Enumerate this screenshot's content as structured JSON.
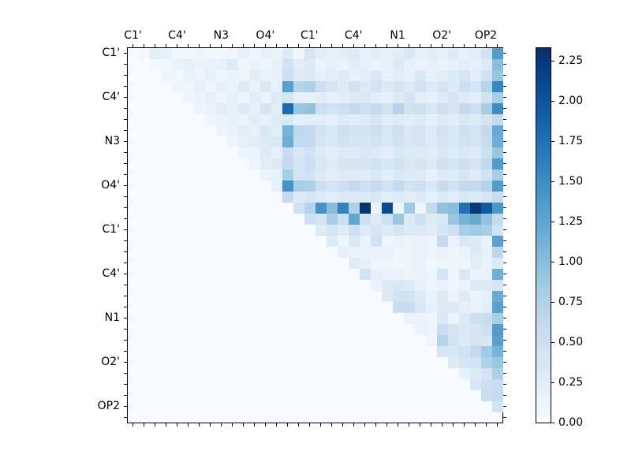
{
  "chart_data": {
    "type": "heatmap",
    "title": "",
    "xlabel": "",
    "ylabel": "",
    "n_cells": 34,
    "x_tick_labels": [
      "C1'",
      "C4'",
      "N3",
      "O4'",
      "C1'",
      "C4'",
      "N1",
      "O2'",
      "OP2"
    ],
    "y_tick_labels": [
      "C1'",
      "C4'",
      "N3",
      "O4'",
      "C1'",
      "C4'",
      "N1",
      "O2'",
      "OP2"
    ],
    "labeled_cell_indices": [
      0,
      4,
      8,
      12,
      16,
      20,
      24,
      28,
      32
    ],
    "colormap": "Blues",
    "vmin": 0.0,
    "vmax": 2.33,
    "colorbar": {
      "tick_labels": [
        "0.00",
        "0.25",
        "0.50",
        "0.75",
        "1.00",
        "1.25",
        "1.50",
        "1.75",
        "2.00",
        "2.25"
      ],
      "tick_values": [
        0.0,
        0.25,
        0.5,
        0.75,
        1.0,
        1.25,
        1.5,
        1.75,
        2.0,
        2.25
      ]
    },
    "matrix": [
      [
        0,
        0.05,
        0.25,
        0.2,
        0.08,
        0.05,
        0.1,
        0.08,
        0.05,
        0.1,
        0.2,
        0.1,
        0.2,
        0.15,
        0.3,
        0.1,
        0.4,
        0.25,
        0.2,
        0.25,
        0.3,
        0.2,
        0.25,
        0.2,
        0.25,
        0.35,
        0.2,
        0.25,
        0.2,
        0.3,
        0.2,
        0.25,
        0.45,
        1.35
      ],
      [
        0,
        0,
        0.05,
        0.08,
        0.15,
        0.2,
        0.15,
        0.15,
        0.2,
        0.3,
        0.1,
        0.15,
        0.1,
        0.2,
        0.45,
        0.25,
        0.3,
        0.15,
        0.2,
        0.15,
        0.25,
        0.2,
        0.15,
        0.2,
        0.3,
        0.2,
        0.15,
        0.2,
        0.15,
        0.2,
        0.25,
        0.2,
        0.3,
        1.0
      ],
      [
        0,
        0,
        0,
        0.1,
        0.08,
        0.15,
        0.1,
        0.2,
        0.1,
        0.15,
        0.1,
        0.25,
        0.15,
        0.2,
        0.5,
        0.3,
        0.3,
        0.2,
        0.25,
        0.3,
        0.2,
        0.25,
        0.35,
        0.2,
        0.25,
        0.2,
        0.35,
        0.2,
        0.25,
        0.3,
        0.4,
        0.25,
        0.45,
        0.9
      ],
      [
        0,
        0,
        0,
        0,
        0.1,
        0.1,
        0.2,
        0.1,
        0.2,
        0.15,
        0.3,
        0.15,
        0.35,
        0.2,
        1.3,
        0.7,
        0.75,
        0.5,
        0.4,
        0.3,
        0.45,
        0.3,
        0.45,
        0.3,
        0.4,
        0.3,
        0.45,
        0.3,
        0.4,
        0.3,
        0.5,
        0.4,
        0.7,
        1.55
      ],
      [
        0,
        0,
        0,
        0,
        0,
        0.1,
        0.12,
        0.2,
        0.1,
        0.2,
        0.12,
        0.25,
        0.15,
        0.3,
        0.4,
        0.2,
        0.2,
        0.25,
        0.2,
        0.25,
        0.3,
        0.35,
        0.25,
        0.2,
        0.3,
        0.4,
        0.25,
        0.2,
        0.3,
        0.4,
        0.3,
        0.25,
        0.45,
        0.8
      ],
      [
        0,
        0,
        0,
        0,
        0,
        0,
        0.12,
        0.15,
        0.25,
        0.18,
        0.3,
        0.2,
        0.4,
        0.25,
        1.8,
        0.9,
        0.95,
        0.5,
        0.45,
        0.5,
        0.6,
        0.5,
        0.6,
        0.45,
        0.7,
        0.45,
        0.5,
        0.35,
        0.5,
        0.4,
        0.6,
        0.5,
        0.8,
        1.5
      ],
      [
        0,
        0,
        0,
        0,
        0,
        0,
        0,
        0.1,
        0.15,
        0.2,
        0.15,
        0.25,
        0.2,
        0.3,
        0.35,
        0.2,
        0.25,
        0.25,
        0.2,
        0.3,
        0.25,
        0.3,
        0.4,
        0.25,
        0.3,
        0.25,
        0.3,
        0.2,
        0.3,
        0.25,
        0.35,
        0.3,
        0.4,
        0.6
      ],
      [
        0,
        0,
        0,
        0,
        0,
        0,
        0,
        0,
        0.12,
        0.15,
        0.25,
        0.18,
        0.35,
        0.25,
        1.1,
        0.65,
        0.6,
        0.45,
        0.35,
        0.5,
        0.45,
        0.45,
        0.5,
        0.35,
        0.5,
        0.35,
        0.4,
        0.3,
        0.45,
        0.35,
        0.5,
        0.4,
        0.6,
        1.2
      ],
      [
        0,
        0,
        0,
        0,
        0,
        0,
        0,
        0,
        0,
        0.12,
        0.2,
        0.25,
        0.3,
        0.35,
        1.15,
        0.6,
        0.6,
        0.4,
        0.35,
        0.45,
        0.4,
        0.4,
        0.45,
        0.35,
        0.45,
        0.35,
        0.4,
        0.3,
        0.4,
        0.35,
        0.45,
        0.4,
        0.55,
        1.15
      ],
      [
        0,
        0,
        0,
        0,
        0,
        0,
        0,
        0,
        0,
        0,
        0.12,
        0.15,
        0.3,
        0.2,
        0.55,
        0.35,
        0.45,
        0.3,
        0.25,
        0.3,
        0.3,
        0.35,
        0.3,
        0.25,
        0.35,
        0.3,
        0.3,
        0.25,
        0.35,
        0.3,
        0.35,
        0.3,
        0.5,
        0.9
      ],
      [
        0,
        0,
        0,
        0,
        0,
        0,
        0,
        0,
        0,
        0,
        0,
        0.12,
        0.25,
        0.3,
        0.6,
        0.4,
        0.5,
        0.35,
        0.3,
        0.4,
        0.4,
        0.4,
        0.45,
        0.35,
        0.45,
        0.35,
        0.4,
        0.3,
        0.45,
        0.4,
        0.5,
        0.4,
        0.6,
        1.35
      ],
      [
        0,
        0,
        0,
        0,
        0,
        0,
        0,
        0,
        0,
        0,
        0,
        0,
        0.15,
        0.2,
        0.8,
        0.4,
        0.45,
        0.3,
        0.25,
        0.3,
        0.3,
        0.3,
        0.35,
        0.25,
        0.35,
        0.3,
        0.3,
        0.2,
        0.3,
        0.3,
        0.4,
        0.3,
        0.45,
        0.8
      ],
      [
        0,
        0,
        0,
        0,
        0,
        0,
        0,
        0,
        0,
        0,
        0,
        0,
        0,
        0.2,
        1.45,
        0.8,
        0.75,
        0.5,
        0.4,
        0.5,
        0.6,
        0.5,
        0.55,
        0.45,
        0.6,
        0.45,
        0.5,
        0.35,
        0.55,
        0.45,
        0.6,
        0.6,
        0.7,
        1.35
      ],
      [
        0,
        0,
        0,
        0,
        0,
        0,
        0,
        0,
        0,
        0,
        0,
        0,
        0,
        0,
        0.6,
        0.3,
        0.4,
        0.3,
        0.25,
        0.3,
        0.3,
        0.3,
        0.35,
        0.25,
        0.3,
        0.25,
        0.3,
        0.2,
        0.3,
        0.25,
        0.35,
        0.3,
        0.4,
        0.55
      ],
      [
        0,
        0,
        0,
        0,
        0,
        0,
        0,
        0,
        0,
        0,
        0,
        0,
        0,
        0,
        0,
        0.45,
        0.7,
        1.45,
        1.0,
        1.6,
        0.75,
        2.3,
        0.15,
        2.1,
        0.1,
        0.85,
        0.1,
        0.6,
        0.95,
        1.0,
        1.75,
        2.25,
        1.95,
        1.4
      ],
      [
        0,
        0,
        0,
        0,
        0,
        0,
        0,
        0,
        0,
        0,
        0,
        0,
        0,
        0,
        0,
        0,
        0.5,
        0.4,
        0.8,
        0.5,
        1.25,
        0.5,
        0.3,
        0.5,
        0.9,
        0.3,
        0.5,
        0.3,
        0.35,
        0.9,
        1.1,
        1.2,
        0.95,
        0.6
      ],
      [
        0,
        0,
        0,
        0,
        0,
        0,
        0,
        0,
        0,
        0,
        0,
        0,
        0,
        0,
        0,
        0,
        0,
        0.3,
        0.4,
        0.3,
        0.5,
        0.3,
        0.4,
        0.3,
        0.4,
        0.3,
        0.3,
        0.25,
        0.4,
        0.5,
        0.8,
        0.85,
        0.8,
        0.45
      ],
      [
        0,
        0,
        0,
        0,
        0,
        0,
        0,
        0,
        0,
        0,
        0,
        0,
        0,
        0,
        0,
        0,
        0,
        0,
        0.3,
        0.1,
        0.35,
        0.15,
        0.45,
        0.1,
        0.15,
        0.1,
        0.15,
        0.1,
        0.6,
        0.15,
        0.35,
        0.3,
        0.15,
        1.3
      ],
      [
        0,
        0,
        0,
        0,
        0,
        0,
        0,
        0,
        0,
        0,
        0,
        0,
        0,
        0,
        0,
        0,
        0,
        0,
        0,
        0.2,
        0.15,
        0.15,
        0.15,
        0.15,
        0.1,
        0.1,
        0.15,
        0.1,
        0.15,
        0.1,
        0.15,
        0.3,
        0.2,
        0.65
      ],
      [
        0,
        0,
        0,
        0,
        0,
        0,
        0,
        0,
        0,
        0,
        0,
        0,
        0,
        0,
        0,
        0,
        0,
        0,
        0,
        0,
        0.3,
        0.2,
        0.1,
        0.1,
        0.08,
        0.1,
        0.15,
        0.08,
        0.1,
        0.1,
        0.1,
        0.25,
        0.15,
        0.3
      ],
      [
        0,
        0,
        0,
        0,
        0,
        0,
        0,
        0,
        0,
        0,
        0,
        0,
        0,
        0,
        0,
        0,
        0,
        0,
        0,
        0,
        0,
        0.45,
        0.2,
        0.15,
        0.15,
        0.1,
        0.15,
        0.1,
        0.4,
        0.1,
        0.35,
        0.15,
        0.15,
        1.15
      ],
      [
        0,
        0,
        0,
        0,
        0,
        0,
        0,
        0,
        0,
        0,
        0,
        0,
        0,
        0,
        0,
        0,
        0,
        0,
        0,
        0,
        0,
        0,
        0.15,
        0.3,
        0.35,
        0.3,
        0.2,
        0.1,
        0.15,
        0.1,
        0.15,
        0.3,
        0.3,
        0.4
      ],
      [
        0,
        0,
        0,
        0,
        0,
        0,
        0,
        0,
        0,
        0,
        0,
        0,
        0,
        0,
        0,
        0,
        0,
        0,
        0,
        0,
        0,
        0,
        0,
        0.3,
        0.45,
        0.45,
        0.3,
        0.15,
        0.3,
        0.15,
        0.3,
        0.15,
        0.2,
        1.2
      ],
      [
        0,
        0,
        0,
        0,
        0,
        0,
        0,
        0,
        0,
        0,
        0,
        0,
        0,
        0,
        0,
        0,
        0,
        0,
        0,
        0,
        0,
        0,
        0,
        0,
        0.55,
        0.55,
        0.35,
        0.2,
        0.3,
        0.3,
        0.2,
        0.15,
        0.25,
        1.3
      ],
      [
        0,
        0,
        0,
        0,
        0,
        0,
        0,
        0,
        0,
        0,
        0,
        0,
        0,
        0,
        0,
        0,
        0,
        0,
        0,
        0,
        0,
        0,
        0,
        0,
        0,
        0.15,
        0.15,
        0.1,
        0.35,
        0.15,
        0.3,
        0.5,
        0.55,
        0.8
      ],
      [
        0,
        0,
        0,
        0,
        0,
        0,
        0,
        0,
        0,
        0,
        0,
        0,
        0,
        0,
        0,
        0,
        0,
        0,
        0,
        0,
        0,
        0,
        0,
        0,
        0,
        0,
        0.15,
        0.1,
        0.55,
        0.4,
        0.35,
        0.4,
        0.5,
        1.35
      ],
      [
        0,
        0,
        0,
        0,
        0,
        0,
        0,
        0,
        0,
        0,
        0,
        0,
        0,
        0,
        0,
        0,
        0,
        0,
        0,
        0,
        0,
        0,
        0,
        0,
        0,
        0,
        0,
        0.1,
        0.7,
        0.45,
        0.3,
        0.4,
        0.35,
        1.3
      ],
      [
        0,
        0,
        0,
        0,
        0,
        0,
        0,
        0,
        0,
        0,
        0,
        0,
        0,
        0,
        0,
        0,
        0,
        0,
        0,
        0,
        0,
        0,
        0,
        0,
        0,
        0,
        0,
        0,
        0.4,
        0.35,
        0.45,
        0.6,
        0.85,
        1.1
      ],
      [
        0,
        0,
        0,
        0,
        0,
        0,
        0,
        0,
        0,
        0,
        0,
        0,
        0,
        0,
        0,
        0,
        0,
        0,
        0,
        0,
        0,
        0,
        0,
        0,
        0,
        0,
        0,
        0,
        0,
        0.3,
        0.4,
        0.45,
        0.75,
        0.9
      ],
      [
        0,
        0,
        0,
        0,
        0,
        0,
        0,
        0,
        0,
        0,
        0,
        0,
        0,
        0,
        0,
        0,
        0,
        0,
        0,
        0,
        0,
        0,
        0,
        0,
        0,
        0,
        0,
        0,
        0,
        0,
        0.2,
        0.3,
        0.4,
        0.75
      ],
      [
        0,
        0,
        0,
        0,
        0,
        0,
        0,
        0,
        0,
        0,
        0,
        0,
        0,
        0,
        0,
        0,
        0,
        0,
        0,
        0,
        0,
        0,
        0,
        0,
        0,
        0,
        0,
        0,
        0,
        0,
        0,
        0.35,
        0.5,
        0.55
      ],
      [
        0,
        0,
        0,
        0,
        0,
        0,
        0,
        0,
        0,
        0,
        0,
        0,
        0,
        0,
        0,
        0,
        0,
        0,
        0,
        0,
        0,
        0,
        0,
        0,
        0,
        0,
        0,
        0,
        0,
        0,
        0,
        0,
        0.55,
        0.6
      ],
      [
        0,
        0,
        0,
        0,
        0,
        0,
        0,
        0,
        0,
        0,
        0,
        0,
        0,
        0,
        0,
        0,
        0,
        0,
        0,
        0,
        0,
        0,
        0,
        0,
        0,
        0,
        0,
        0,
        0,
        0,
        0,
        0,
        0,
        0.45
      ],
      [
        0,
        0,
        0,
        0,
        0,
        0,
        0,
        0,
        0,
        0,
        0,
        0,
        0,
        0,
        0,
        0,
        0,
        0,
        0,
        0,
        0,
        0,
        0,
        0,
        0,
        0,
        0,
        0,
        0,
        0,
        0,
        0,
        0,
        0
      ]
    ]
  },
  "colors": {
    "figure_background": "#ffffff",
    "axis_color": "#000000",
    "cmap_stops": [
      [
        0.0,
        [
          247,
          251,
          255
        ]
      ],
      [
        0.125,
        [
          222,
          235,
          247
        ]
      ],
      [
        0.25,
        [
          198,
          219,
          239
        ]
      ],
      [
        0.375,
        [
          158,
          202,
          225
        ]
      ],
      [
        0.5,
        [
          107,
          174,
          214
        ]
      ],
      [
        0.625,
        [
          66,
          146,
          198
        ]
      ],
      [
        0.75,
        [
          33,
          113,
          181
        ]
      ],
      [
        0.875,
        [
          8,
          81,
          156
        ]
      ],
      [
        1.0,
        [
          8,
          48,
          107
        ]
      ]
    ]
  }
}
